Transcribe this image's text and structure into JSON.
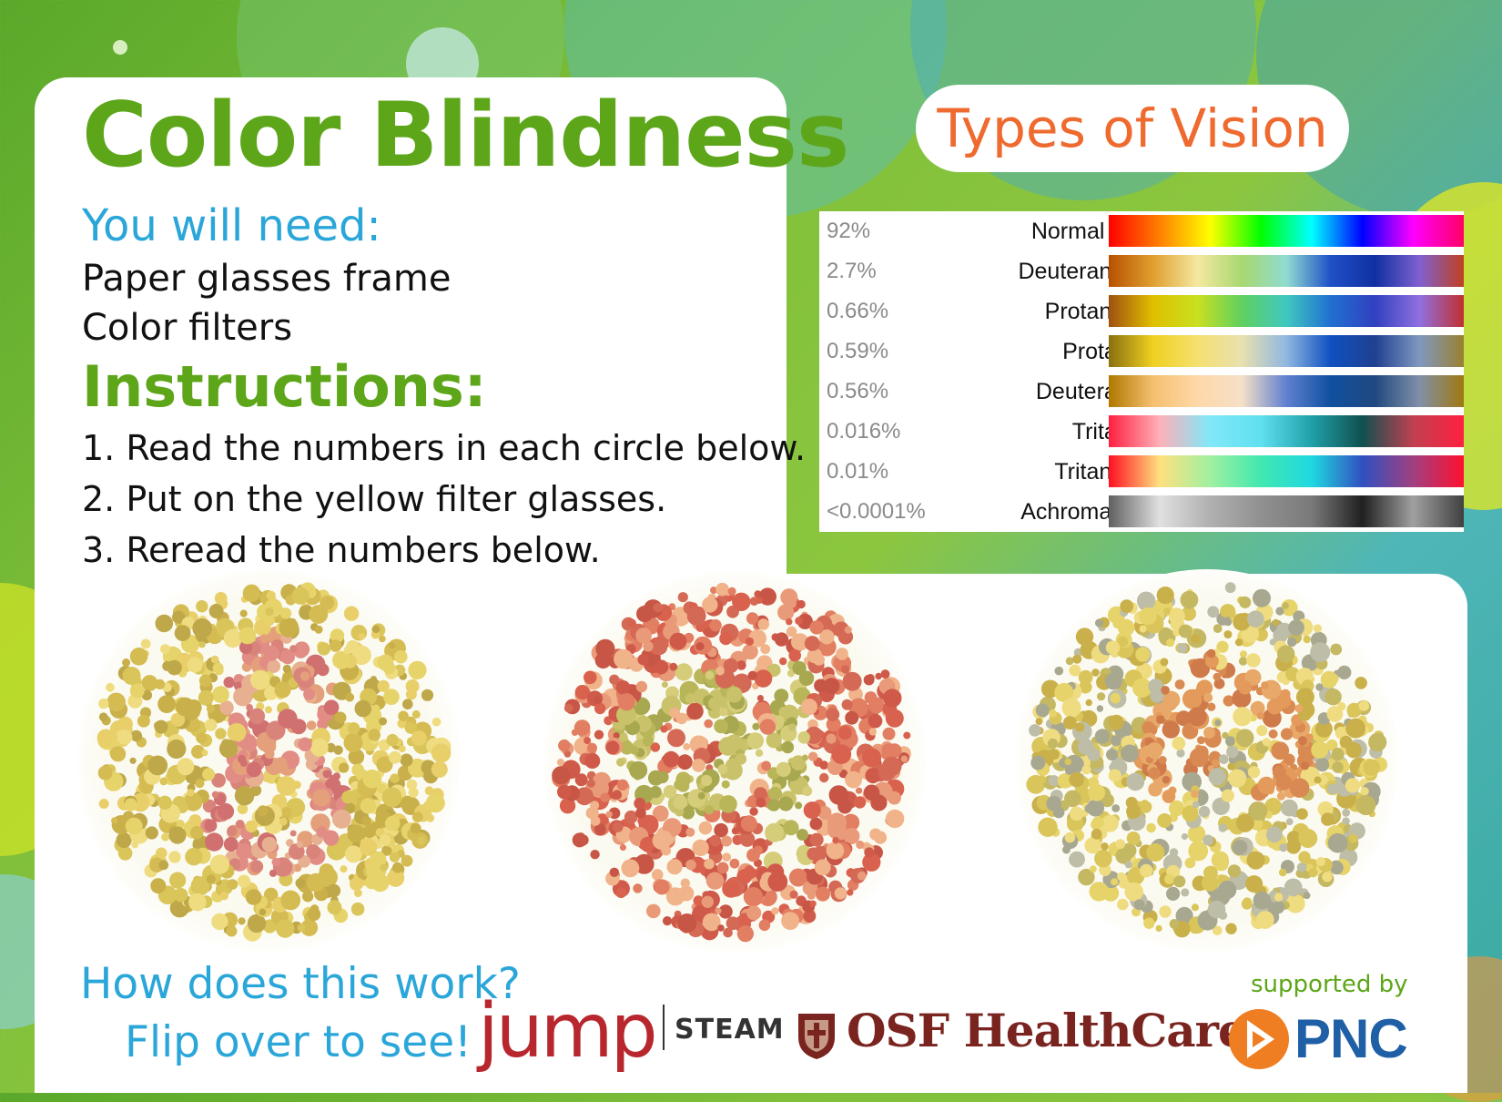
{
  "title": "Color Blindness",
  "need_heading": "You will need:",
  "need_items": [
    "Paper glasses frame",
    "Color filters"
  ],
  "instructions_heading": "Instructions:",
  "steps": [
    "1. Read the numbers in each circle below.",
    "2. Put on the yellow filter glasses.",
    "3. Reread the numbers below."
  ],
  "vision_heading": "Types of Vision",
  "vision_types": [
    {
      "pct": "92%",
      "name": "Normal Vision",
      "stops": [
        "#ff0000",
        "#ff8000",
        "#ffff00",
        "#00ff00",
        "#00ffff",
        "#0000ff",
        "#ff00ff",
        "#ff0066"
      ]
    },
    {
      "pct": "2.7%",
      "name": "Deuteranomaly",
      "stops": [
        "#b85000",
        "#e0a030",
        "#f5e8a0",
        "#a8d870",
        "#8fdcd0",
        "#2050c8",
        "#1030a0",
        "#8060d0",
        "#c04020"
      ]
    },
    {
      "pct": "0.66%",
      "name": "Protanomaly",
      "stops": [
        "#a05010",
        "#e0c000",
        "#c8e020",
        "#60d060",
        "#40c8c0",
        "#2070d0",
        "#3040c0",
        "#9070e0",
        "#c03030"
      ]
    },
    {
      "pct": "0.59%",
      "name": "Protanopia",
      "stops": [
        "#8a7010",
        "#f0d020",
        "#f5e070",
        "#e8e0b0",
        "#90b8e0",
        "#1050c0",
        "#204090",
        "#8098c0",
        "#9a8030"
      ]
    },
    {
      "pct": "0.56%",
      "name": "Deuteranopia",
      "stops": [
        "#b07800",
        "#f5c070",
        "#ffd8a8",
        "#f5e0c8",
        "#6080d0",
        "#1050a0",
        "#204880",
        "#8090a8",
        "#a07810"
      ]
    },
    {
      "pct": "0.016%",
      "name": "Tritanopia",
      "stops": [
        "#ff2040",
        "#ffb0b8",
        "#80e8f8",
        "#60e0f0",
        "#20a0a8",
        "#105050",
        "#c04050",
        "#ff2040"
      ]
    },
    {
      "pct": "0.01%",
      "name": "Tritanomaly",
      "stops": [
        "#ff1020",
        "#ffe080",
        "#a0f0a0",
        "#40e8b0",
        "#20d8e0",
        "#3050c0",
        "#a04080",
        "#ff1030"
      ]
    },
    {
      "pct": "<0.0001%",
      "name": "Achromatopsia",
      "stops": [
        "#606060",
        "#e0e0e0",
        "#b0b0b0",
        "#909090",
        "#7a7a7a",
        "#202020",
        "#a0a0a0",
        "#404040"
      ]
    }
  ],
  "how_line_1": "How does this work?",
  "how_line_2": "Flip over to see!",
  "jump_logo": "jump",
  "steam_label": "STEAM",
  "osf_logo": "OSF HealthCare",
  "supported_by": "supported by",
  "pnc_logo": "PNC",
  "colors": {
    "title_green": "#5da61a",
    "heading_blue": "#2aa6d9",
    "vision_orange": "#ef6a2e",
    "jump_red": "#b7272d",
    "osf_maroon": "#7a2420",
    "pnc_blue": "#1f5fa6",
    "pnc_orange": "#ef7d22"
  }
}
